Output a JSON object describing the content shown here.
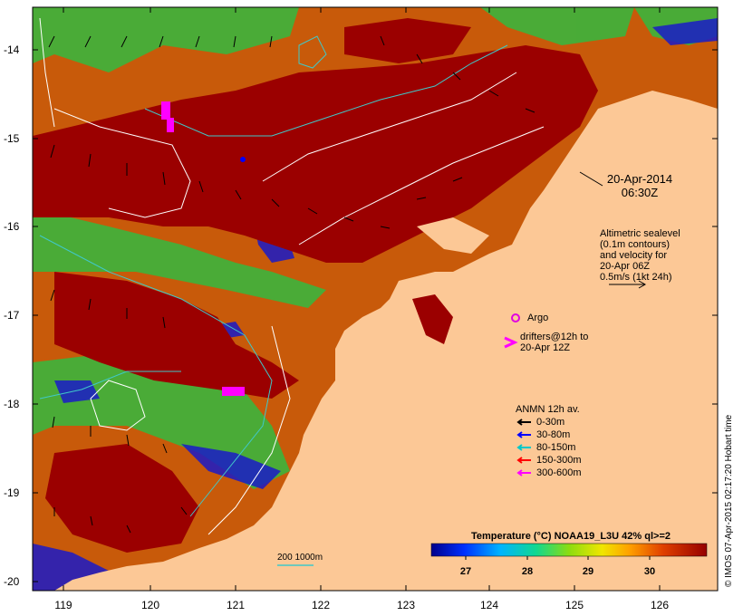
{
  "map": {
    "datetime_line1": "20-Apr-2014",
    "datetime_line2": "06:30Z",
    "altimetry_lines": [
      "Altimetric sealevel",
      "(0.1m contours)",
      "and velocity for",
      "20-Apr 06Z",
      "0.5m/s (1kt 24h)"
    ],
    "argo_label": "Argo",
    "drifter_lines": [
      "drifters@12h to",
      "20-Apr 12Z"
    ],
    "anmn_title": "ANMN 12h av.",
    "anmn_items": [
      {
        "label": "0-30m",
        "color": "#000000"
      },
      {
        "label": "30-80m",
        "color": "#0000ff"
      },
      {
        "label": "80-150m",
        "color": "#00c8c8"
      },
      {
        "label": "150-300m",
        "color": "#ff0000"
      },
      {
        "label": "300-600m",
        "color": "#ff00ff"
      }
    ],
    "bathy_label": "200  1000m",
    "colorbar_title": "Temperature (°C) NOAA19_L3U 42% ql>=2",
    "colorbar_ticks": [
      "27",
      "28",
      "29",
      "30"
    ],
    "colorbar_range": [
      26.5,
      31.0
    ],
    "y_ticks": [
      "-14",
      "-15",
      "-16",
      "-17",
      "-18",
      "-19",
      "-20"
    ],
    "x_ticks": [
      "119",
      "120",
      "121",
      "122",
      "123",
      "124",
      "125",
      "126"
    ],
    "credit": "© IMOS 07-Apr-2015 02:17:20 Hobart time",
    "colors": {
      "land": "#fcc896",
      "warm_sst": "#9b0000",
      "mid_sst": "#c8500a",
      "cool_sst": "#28b428",
      "cold_sst": "#1a1aaa",
      "contour": "#ffffff",
      "isobath": "#40c8c8"
    }
  }
}
